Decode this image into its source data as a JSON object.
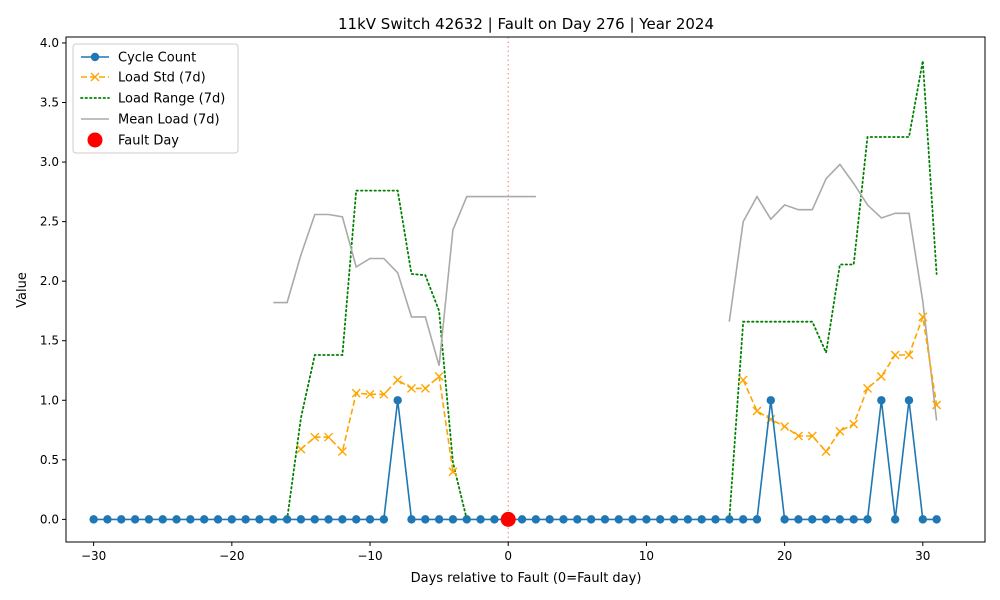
{
  "chart_data": {
    "type": "line",
    "title": "11kV Switch 42632 | Fault on Day 276 | Year 2024",
    "xlabel": "Days relative to Fault (0=Fault day)",
    "ylabel": "Value",
    "xlim": [
      -32.0,
      34.5
    ],
    "ylim": [
      -0.19,
      4.05
    ],
    "xticks": [
      -30,
      -20,
      -10,
      0,
      10,
      20,
      30
    ],
    "xtick_labels": [
      "−30",
      "−20",
      "−10",
      "0",
      "10",
      "20",
      "30"
    ],
    "yticks": [
      0,
      0.5,
      1.0,
      1.5,
      2.0,
      2.5,
      3.0,
      3.5,
      4.0
    ],
    "ytick_labels": [
      "0.0",
      "0.5",
      "1.0",
      "1.5",
      "2.0",
      "2.5",
      "3.0",
      "3.5",
      "4.0"
    ],
    "grid": false,
    "legend_position": "top-left",
    "fault_line_x": 0,
    "series": [
      {
        "name": "Cycle Count",
        "color": "#1f77b4",
        "style": "solid-circle-markers",
        "points": [
          [
            -30,
            0
          ],
          [
            -29,
            0
          ],
          [
            -28,
            0
          ],
          [
            -27,
            0
          ],
          [
            -26,
            0
          ],
          [
            -25,
            0
          ],
          [
            -24,
            0
          ],
          [
            -23,
            0
          ],
          [
            -22,
            0
          ],
          [
            -21,
            0
          ],
          [
            -20,
            0
          ],
          [
            -19,
            0
          ],
          [
            -18,
            0
          ],
          [
            -17,
            0
          ],
          [
            -16,
            0
          ],
          [
            -15,
            0
          ],
          [
            -14,
            0
          ],
          [
            -13,
            0
          ],
          [
            -12,
            0
          ],
          [
            -11,
            0
          ],
          [
            -10,
            0
          ],
          [
            -9,
            0
          ],
          [
            -8,
            1
          ],
          [
            -7,
            0
          ],
          [
            -6,
            0
          ],
          [
            -5,
            0
          ],
          [
            -4,
            0
          ],
          [
            -3,
            0
          ],
          [
            -2,
            0
          ],
          [
            -1,
            0
          ],
          [
            0,
            0
          ],
          [
            1,
            0
          ],
          [
            2,
            0
          ],
          [
            3,
            0
          ],
          [
            4,
            0
          ],
          [
            5,
            0
          ],
          [
            6,
            0
          ],
          [
            7,
            0
          ],
          [
            8,
            0
          ],
          [
            9,
            0
          ],
          [
            10,
            0
          ],
          [
            11,
            0
          ],
          [
            12,
            0
          ],
          [
            13,
            0
          ],
          [
            14,
            0
          ],
          [
            15,
            0
          ],
          [
            16,
            0
          ],
          [
            17,
            0
          ],
          [
            18,
            0
          ],
          [
            19,
            1
          ],
          [
            20,
            0
          ],
          [
            21,
            0
          ],
          [
            22,
            0
          ],
          [
            23,
            0
          ],
          [
            24,
            0
          ],
          [
            25,
            0
          ],
          [
            26,
            0
          ],
          [
            27,
            1
          ],
          [
            28,
            0
          ],
          [
            29,
            1
          ],
          [
            30,
            0
          ],
          [
            31,
            0
          ]
        ]
      },
      {
        "name": "Load Std (7d)",
        "color": "#ffa500",
        "style": "dashed-x-markers",
        "segments": [
          [
            [
              -15,
              0.59
            ],
            [
              -14,
              0.69
            ],
            [
              -13,
              0.69
            ],
            [
              -12,
              0.57
            ],
            [
              -11,
              1.06
            ],
            [
              -10,
              1.05
            ],
            [
              -9,
              1.05
            ],
            [
              -8,
              1.17
            ],
            [
              -7,
              1.1
            ],
            [
              -6,
              1.1
            ],
            [
              -5,
              1.2
            ],
            [
              -4,
              0.4
            ]
          ],
          [
            [
              17,
              1.17
            ],
            [
              18,
              0.91
            ],
            [
              19,
              0.84
            ],
            [
              20,
              0.78
            ],
            [
              21,
              0.7
            ],
            [
              22,
              0.7
            ],
            [
              23,
              0.57
            ],
            [
              24,
              0.74
            ],
            [
              25,
              0.8
            ],
            [
              26,
              1.1
            ],
            [
              27,
              1.2
            ],
            [
              28,
              1.38
            ],
            [
              29,
              1.38
            ],
            [
              30,
              1.7
            ],
            [
              31,
              0.96
            ]
          ]
        ]
      },
      {
        "name": "Load Range (7d)",
        "color": "#008000",
        "style": "dotted",
        "segments": [
          [
            [
              -17,
              0
            ],
            [
              -16,
              0
            ],
            [
              -15,
              0.85
            ],
            [
              -14,
              1.38
            ],
            [
              -13,
              1.38
            ],
            [
              -12,
              1.38
            ],
            [
              -11,
              2.76
            ],
            [
              -10,
              2.76
            ],
            [
              -9,
              2.76
            ],
            [
              -8,
              2.76
            ],
            [
              -7,
              2.06
            ],
            [
              -6,
              2.05
            ],
            [
              -5,
              1.75
            ],
            [
              -4,
              0.48
            ],
            [
              -3,
              0
            ]
          ],
          [
            [
              16,
              0
            ],
            [
              17,
              1.66
            ],
            [
              18,
              1.66
            ],
            [
              19,
              1.66
            ],
            [
              20,
              1.66
            ],
            [
              21,
              1.66
            ],
            [
              22,
              1.66
            ],
            [
              23,
              1.4
            ],
            [
              24,
              2.14
            ],
            [
              25,
              2.14
            ],
            [
              26,
              3.21
            ],
            [
              27,
              3.21
            ],
            [
              28,
              3.21
            ],
            [
              29,
              3.21
            ],
            [
              30,
              3.85
            ],
            [
              31,
              2.06
            ]
          ]
        ]
      },
      {
        "name": "Mean Load (7d)",
        "color": "#aaaaaa",
        "style": "solid",
        "segments": [
          [
            [
              -17,
              1.82
            ],
            [
              -16,
              1.82
            ],
            [
              -15,
              2.22
            ],
            [
              -14,
              2.56
            ],
            [
              -13,
              2.56
            ],
            [
              -12,
              2.54
            ],
            [
              -11,
              2.12
            ],
            [
              -10,
              2.19
            ],
            [
              -9,
              2.19
            ],
            [
              -8,
              2.07
            ],
            [
              -7,
              1.7
            ],
            [
              -6,
              1.7
            ],
            [
              -5,
              1.29
            ],
            [
              -4,
              2.43
            ],
            [
              -3,
              2.71
            ],
            [
              -2,
              2.71
            ],
            [
              -1,
              2.71
            ],
            [
              0,
              2.71
            ],
            [
              1,
              2.71
            ],
            [
              2,
              2.71
            ]
          ],
          [
            [
              16,
              1.66
            ],
            [
              17,
              2.5
            ],
            [
              18,
              2.71
            ],
            [
              19,
              2.52
            ],
            [
              20,
              2.64
            ],
            [
              21,
              2.6
            ],
            [
              22,
              2.6
            ],
            [
              23,
              2.86
            ],
            [
              24,
              2.98
            ],
            [
              25,
              2.82
            ],
            [
              26,
              2.64
            ],
            [
              27,
              2.53
            ],
            [
              28,
              2.57
            ],
            [
              29,
              2.57
            ],
            [
              30,
              1.83
            ],
            [
              31,
              0.83
            ]
          ]
        ]
      },
      {
        "name": "Fault Day",
        "color": "#ff0000",
        "style": "big-circle",
        "points": [
          [
            0,
            0
          ]
        ]
      }
    ]
  }
}
